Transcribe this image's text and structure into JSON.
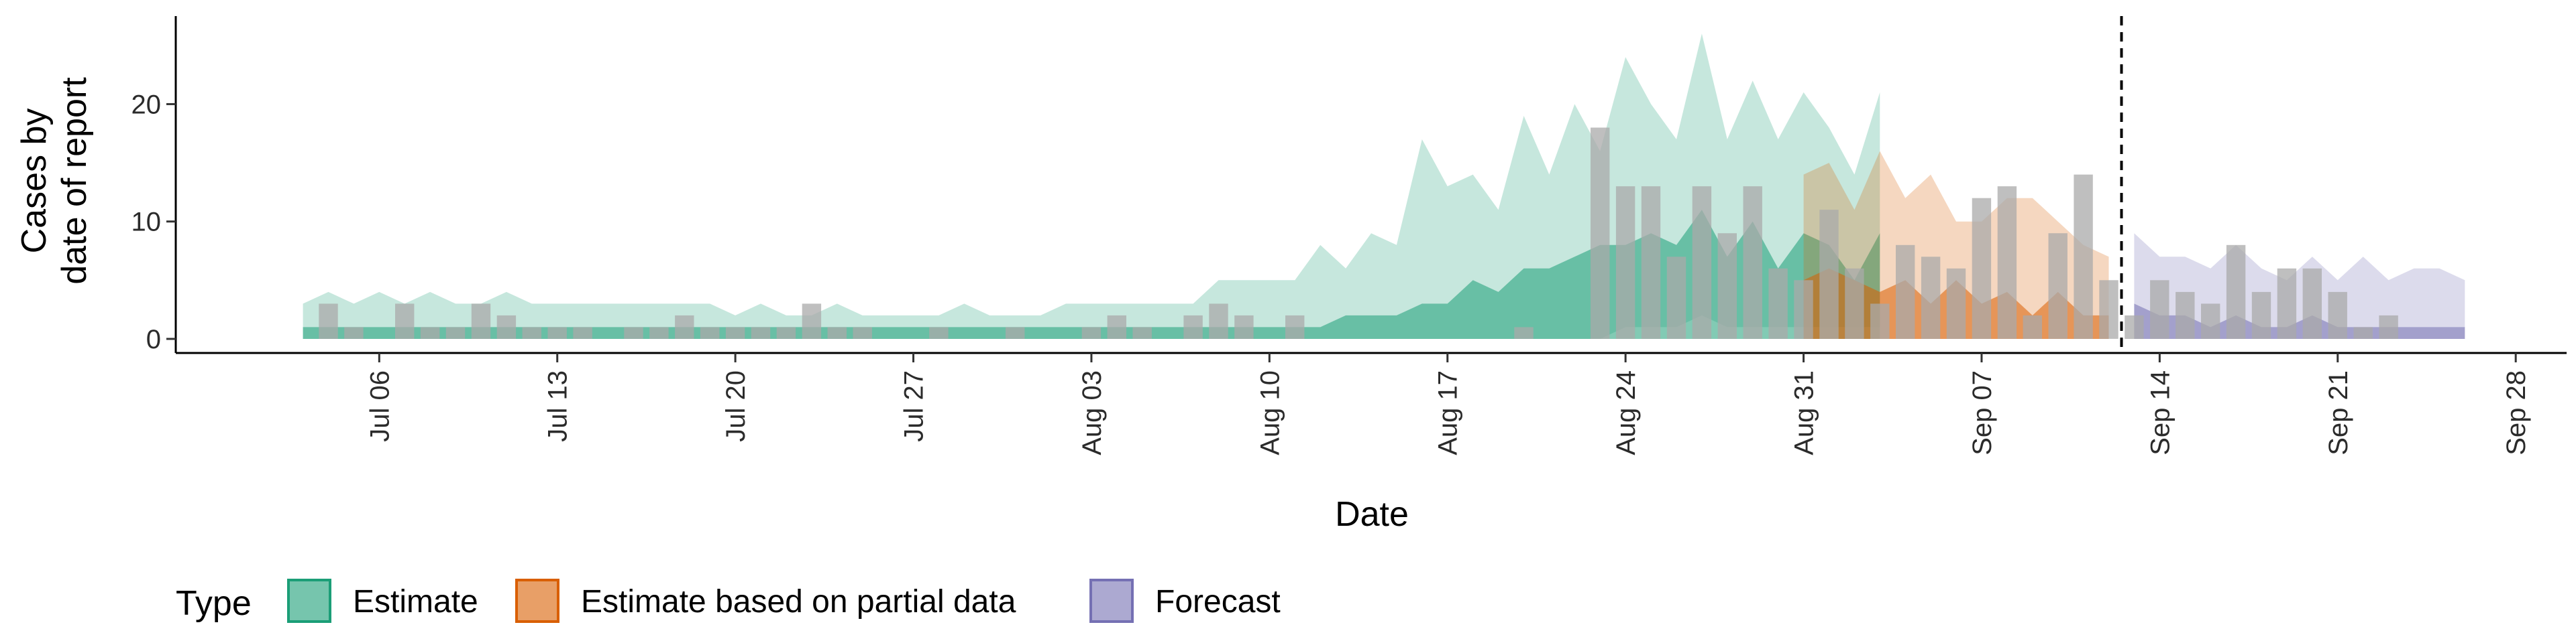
{
  "chart_data": {
    "type": "area",
    "xlabel": "Date",
    "ylabel_lines": [
      "Cases by",
      "date of report"
    ],
    "ylim": [
      -1.2,
      27.5
    ],
    "yticks": [
      0,
      10,
      20
    ],
    "x_range": [
      "2020-06-28",
      "2020-09-30"
    ],
    "x_ticks": [
      {
        "date": "2020-07-06",
        "label": "Jul 06"
      },
      {
        "date": "2020-07-13",
        "label": "Jul 13"
      },
      {
        "date": "2020-07-20",
        "label": "Jul 20"
      },
      {
        "date": "2020-07-27",
        "label": "Jul 27"
      },
      {
        "date": "2020-08-03",
        "label": "Aug 03"
      },
      {
        "date": "2020-08-10",
        "label": "Aug 10"
      },
      {
        "date": "2020-08-17",
        "label": "Aug 17"
      },
      {
        "date": "2020-08-24",
        "label": "Aug 24"
      },
      {
        "date": "2020-08-31",
        "label": "Aug 31"
      },
      {
        "date": "2020-09-07",
        "label": "Sep 07"
      },
      {
        "date": "2020-09-14",
        "label": "Sep 14"
      },
      {
        "date": "2020-09-21",
        "label": "Sep 21"
      },
      {
        "date": "2020-09-28",
        "label": "Sep 28"
      }
    ],
    "forecast_date": "2020-09-12",
    "bars": {
      "start_date": "2020-07-03",
      "color": "#a9a9a9",
      "values": [
        0,
        3,
        1,
        0,
        3,
        1,
        1,
        3,
        2,
        1,
        1,
        1,
        0,
        1,
        1,
        2,
        1,
        1,
        1,
        1,
        3,
        1,
        1,
        0,
        0,
        1,
        0,
        0,
        1,
        0,
        0,
        1,
        2,
        1,
        0,
        2,
        3,
        2,
        0,
        2,
        0,
        0,
        0,
        0,
        0,
        0,
        0,
        0,
        1,
        0,
        0,
        18,
        13,
        13,
        7,
        13,
        9,
        13,
        6,
        5,
        11,
        6,
        3,
        8,
        7,
        6,
        12,
        13,
        2,
        9,
        14,
        5,
        2,
        5,
        4,
        3,
        8,
        4,
        6,
        6,
        4,
        1,
        2
      ]
    },
    "series": [
      {
        "name": "Estimate",
        "fill": "#1b9e77",
        "stroke": "#1b9e77",
        "start_date": "2020-07-03",
        "upper90": [
          3,
          4,
          3,
          4,
          3,
          4,
          3,
          3,
          4,
          3,
          3,
          3,
          3,
          3,
          3,
          3,
          3,
          2,
          3,
          2,
          2,
          3,
          2,
          2,
          2,
          2,
          3,
          2,
          2,
          2,
          3,
          3,
          3,
          3,
          3,
          3,
          5,
          5,
          5,
          5,
          8,
          6,
          9,
          8,
          17,
          13,
          14,
          11,
          19,
          14,
          20,
          16,
          24,
          20,
          17,
          26,
          17,
          22,
          17,
          21,
          18,
          14,
          21
        ],
        "lower90": [
          0,
          0,
          0,
          0,
          0,
          0,
          0,
          0,
          0,
          0,
          0,
          0,
          0,
          0,
          0,
          0,
          0,
          0,
          0,
          0,
          0,
          0,
          0,
          0,
          0,
          0,
          0,
          0,
          0,
          0,
          0,
          0,
          0,
          0,
          0,
          0,
          0,
          0,
          0,
          0,
          0,
          0,
          0,
          0,
          0,
          0,
          0,
          0,
          0,
          0,
          0,
          0,
          1,
          1,
          1,
          2,
          1,
          1,
          1,
          1,
          1,
          1,
          1
        ],
        "upper50": [
          1,
          1,
          1,
          1,
          1,
          1,
          1,
          1,
          1,
          1,
          1,
          1,
          1,
          1,
          1,
          1,
          1,
          1,
          1,
          1,
          1,
          1,
          1,
          1,
          1,
          1,
          1,
          1,
          1,
          1,
          1,
          1,
          1,
          1,
          1,
          1,
          1,
          1,
          1,
          1,
          1,
          2,
          2,
          2,
          3,
          3,
          5,
          4,
          6,
          6,
          7,
          8,
          8,
          9,
          8,
          11,
          7,
          10,
          6,
          9,
          8,
          5,
          9
        ],
        "lower50": [
          0,
          0,
          0,
          0,
          0,
          0,
          0,
          0,
          0,
          0,
          0,
          0,
          0,
          0,
          0,
          0,
          0,
          0,
          0,
          0,
          0,
          0,
          0,
          0,
          0,
          0,
          0,
          0,
          0,
          0,
          0,
          0,
          0,
          0,
          0,
          0,
          0,
          0,
          0,
          0,
          0,
          0,
          0,
          0,
          0,
          0,
          0,
          0,
          0,
          0,
          0,
          0,
          0,
          0,
          0,
          0,
          0,
          0,
          0,
          0,
          0,
          0,
          0
        ]
      },
      {
        "name": "Estimate based on partial data",
        "fill": "#d95f02",
        "stroke": "#d95f02",
        "start_date": "2020-08-31",
        "upper90": [
          14,
          15,
          11,
          16,
          12,
          14,
          10,
          10,
          12,
          12,
          10,
          8,
          7
        ],
        "lower90": [
          0,
          0,
          0,
          0,
          0,
          0,
          0,
          0,
          0,
          0,
          0,
          0,
          0
        ],
        "upper50": [
          5,
          6,
          5,
          4,
          5,
          3,
          5,
          3,
          4,
          2,
          4,
          2,
          2
        ],
        "lower50": [
          0,
          0,
          0,
          0,
          0,
          0,
          0,
          0,
          0,
          0,
          0,
          0,
          0
        ]
      },
      {
        "name": "Forecast",
        "fill": "#7570b3",
        "stroke": "#7570b3",
        "start_date": "2020-09-13",
        "upper90": [
          9,
          7,
          7,
          6,
          8,
          6,
          5,
          7,
          5,
          7,
          5,
          6,
          6,
          5
        ],
        "lower90": [
          0,
          0,
          0,
          0,
          0,
          0,
          0,
          0,
          0,
          0,
          0,
          0,
          0,
          0
        ],
        "upper50": [
          3,
          2,
          2,
          1,
          2,
          1,
          1,
          2,
          1,
          1,
          1,
          1,
          1,
          1
        ],
        "lower50": [
          0,
          0,
          0,
          0,
          0,
          0,
          0,
          0,
          0,
          0,
          0,
          0,
          0,
          0
        ]
      }
    ],
    "legend": {
      "title": "Type",
      "position": "bottom-left",
      "items": [
        {
          "label": "Estimate",
          "fill": "#1b9e77",
          "stroke": "#1b9e77"
        },
        {
          "label": "Estimate based on partial data",
          "fill": "#d95f02",
          "stroke": "#d95f02"
        },
        {
          "label": "Forecast",
          "fill": "#7570b3",
          "stroke": "#7570b3"
        }
      ]
    },
    "grid": false
  }
}
